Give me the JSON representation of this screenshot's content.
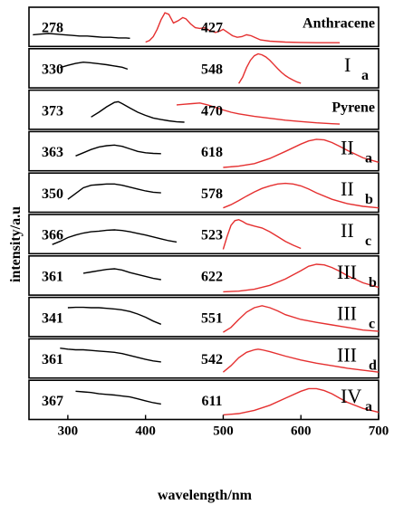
{
  "chart_data": {
    "type": "line",
    "xlabel": "wavelength/nm",
    "ylabel": "intensity/a.u",
    "xlim": [
      250,
      700
    ],
    "xticks": [
      300,
      400,
      500,
      600,
      700
    ],
    "colors": {
      "absorption": "#000000",
      "emission": "#e53030"
    },
    "panels": [
      {
        "label": "Anthracene",
        "roman": "",
        "subscript": "",
        "abs_peak": "278",
        "em_peak": "427",
        "absorption": {
          "name": "",
          "x": [
            255,
            265,
            275,
            285,
            295,
            305,
            315,
            325,
            335,
            345,
            355,
            365,
            375,
            380
          ],
          "y": [
            0.28,
            0.3,
            0.32,
            0.3,
            0.28,
            0.26,
            0.24,
            0.24,
            0.22,
            0.2,
            0.2,
            0.18,
            0.18,
            0.17
          ]
        },
        "emission": {
          "name": "",
          "x": [
            400,
            405,
            410,
            415,
            420,
            425,
            430,
            436,
            442,
            448,
            452,
            458,
            464,
            470,
            476,
            482,
            490,
            496,
            500,
            506,
            512,
            518,
            524,
            530,
            536,
            542,
            548,
            560,
            580,
            600,
            620,
            640,
            650
          ],
          "y": [
            0.05,
            0.1,
            0.22,
            0.45,
            0.75,
            0.97,
            0.92,
            0.65,
            0.72,
            0.82,
            0.78,
            0.62,
            0.5,
            0.48,
            0.5,
            0.42,
            0.35,
            0.4,
            0.45,
            0.35,
            0.25,
            0.2,
            0.22,
            0.28,
            0.25,
            0.18,
            0.12,
            0.08,
            0.05,
            0.04,
            0.03,
            0.03,
            0.03
          ]
        }
      },
      {
        "label": "",
        "roman": "I",
        "subscript": "a",
        "abs_peak": "330",
        "em_peak": "548",
        "absorption": {
          "name": "",
          "x": [
            290,
            300,
            310,
            320,
            330,
            340,
            350,
            360,
            370,
            377
          ],
          "y": [
            0.55,
            0.62,
            0.68,
            0.72,
            0.7,
            0.67,
            0.64,
            0.6,
            0.56,
            0.5
          ]
        },
        "emission": {
          "name": "",
          "x": [
            520,
            525,
            530,
            535,
            540,
            545,
            550,
            555,
            560,
            565,
            570,
            575,
            580,
            585,
            590,
            595,
            600
          ],
          "y": [
            0.05,
            0.25,
            0.55,
            0.78,
            0.92,
            0.98,
            0.95,
            0.88,
            0.78,
            0.65,
            0.52,
            0.4,
            0.3,
            0.22,
            0.16,
            0.1,
            0.06
          ]
        }
      },
      {
        "label": "Pyrene",
        "roman": "",
        "subscript": "",
        "abs_peak": "373",
        "em_peak": "470",
        "absorption": {
          "name": "",
          "x": [
            330,
            340,
            350,
            360,
            365,
            370,
            380,
            390,
            400,
            410,
            420,
            430,
            440,
            450
          ],
          "y": [
            0.3,
            0.45,
            0.62,
            0.76,
            0.78,
            0.72,
            0.58,
            0.45,
            0.35,
            0.27,
            0.22,
            0.18,
            0.15,
            0.14
          ]
        },
        "emission": {
          "name": "",
          "x": [
            440,
            450,
            460,
            470,
            480,
            490,
            500,
            510,
            520,
            540,
            560,
            580,
            600,
            620,
            640,
            650
          ],
          "y": [
            0.68,
            0.7,
            0.72,
            0.74,
            0.68,
            0.6,
            0.52,
            0.45,
            0.4,
            0.32,
            0.26,
            0.2,
            0.16,
            0.12,
            0.09,
            0.08
          ]
        }
      },
      {
        "label": "",
        "roman": "II",
        "subscript": "a",
        "abs_peak": "363",
        "em_peak": "618",
        "absorption": {
          "name": "",
          "x": [
            310,
            320,
            330,
            340,
            350,
            360,
            370,
            380,
            390,
            400,
            410,
            420
          ],
          "y": [
            0.38,
            0.48,
            0.58,
            0.66,
            0.7,
            0.72,
            0.68,
            0.6,
            0.52,
            0.48,
            0.46,
            0.45
          ]
        },
        "emission": {
          "name": "",
          "x": [
            500,
            520,
            540,
            560,
            580,
            600,
            610,
            620,
            630,
            640,
            650,
            660,
            680,
            700
          ],
          "y": [
            0.02,
            0.06,
            0.14,
            0.3,
            0.52,
            0.75,
            0.85,
            0.9,
            0.88,
            0.8,
            0.68,
            0.55,
            0.32,
            0.18
          ]
        }
      },
      {
        "label": "",
        "roman": "II",
        "subscript": "b",
        "abs_peak": "350",
        "em_peak": "578",
        "absorption": {
          "name": "",
          "x": [
            300,
            310,
            320,
            330,
            340,
            350,
            360,
            370,
            380,
            390,
            400,
            410,
            420
          ],
          "y": [
            0.32,
            0.5,
            0.68,
            0.76,
            0.78,
            0.8,
            0.8,
            0.76,
            0.7,
            0.64,
            0.58,
            0.54,
            0.52
          ]
        },
        "emission": {
          "name": "",
          "x": [
            500,
            510,
            520,
            530,
            540,
            550,
            560,
            570,
            580,
            590,
            600,
            610,
            620,
            640,
            660,
            680,
            700
          ],
          "y": [
            0.05,
            0.15,
            0.28,
            0.42,
            0.55,
            0.66,
            0.74,
            0.8,
            0.82,
            0.8,
            0.74,
            0.64,
            0.52,
            0.32,
            0.18,
            0.1,
            0.05
          ]
        }
      },
      {
        "label": "",
        "roman": "II",
        "subscript": "c",
        "abs_peak": "366",
        "em_peak": "523",
        "absorption": {
          "name": "",
          "x": [
            280,
            290,
            300,
            310,
            320,
            330,
            340,
            350,
            360,
            370,
            380,
            390,
            400,
            410,
            420,
            430,
            440
          ],
          "y": [
            0.2,
            0.3,
            0.42,
            0.5,
            0.56,
            0.6,
            0.62,
            0.65,
            0.66,
            0.64,
            0.6,
            0.55,
            0.5,
            0.44,
            0.38,
            0.32,
            0.28
          ]
        },
        "emission": {
          "name": "",
          "x": [
            500,
            505,
            510,
            515,
            520,
            525,
            530,
            540,
            550,
            560,
            570,
            580,
            590,
            600
          ],
          "y": [
            0.05,
            0.45,
            0.8,
            0.95,
            0.98,
            0.92,
            0.85,
            0.78,
            0.72,
            0.6,
            0.45,
            0.3,
            0.18,
            0.08
          ]
        }
      },
      {
        "label": "",
        "roman": "III",
        "subscript": "b",
        "abs_peak": "361",
        "em_peak": "622",
        "absorption": {
          "name": "",
          "x": [
            320,
            330,
            340,
            350,
            360,
            370,
            380,
            390,
            400,
            410,
            420
          ],
          "y": [
            0.6,
            0.64,
            0.68,
            0.72,
            0.74,
            0.7,
            0.62,
            0.56,
            0.5,
            0.44,
            0.4
          ]
        },
        "emission": {
          "name": "",
          "x": [
            500,
            520,
            540,
            560,
            580,
            600,
            610,
            620,
            630,
            640,
            650,
            660,
            680,
            700
          ],
          "y": [
            0.02,
            0.04,
            0.1,
            0.22,
            0.42,
            0.68,
            0.82,
            0.88,
            0.86,
            0.78,
            0.66,
            0.52,
            0.3,
            0.16
          ]
        }
      },
      {
        "label": "",
        "roman": "III",
        "subscript": "c",
        "abs_peak": "341",
        "em_peak": "551",
        "absorption": {
          "name": "",
          "x": [
            300,
            310,
            320,
            330,
            340,
            350,
            360,
            370,
            380,
            390,
            400,
            410,
            420
          ],
          "y": [
            0.82,
            0.83,
            0.83,
            0.82,
            0.82,
            0.8,
            0.78,
            0.75,
            0.7,
            0.62,
            0.52,
            0.4,
            0.3
          ]
        },
        "emission": {
          "name": "",
          "x": [
            500,
            510,
            520,
            530,
            540,
            550,
            560,
            570,
            580,
            600,
            620,
            640,
            660,
            680,
            700
          ],
          "y": [
            0.05,
            0.2,
            0.45,
            0.68,
            0.82,
            0.88,
            0.82,
            0.72,
            0.6,
            0.45,
            0.36,
            0.28,
            0.2,
            0.12,
            0.08
          ]
        }
      },
      {
        "label": "",
        "roman": "III",
        "subscript": "d",
        "abs_peak": "361",
        "em_peak": "542",
        "absorption": {
          "name": "",
          "x": [
            290,
            300,
            310,
            320,
            330,
            340,
            350,
            360,
            370,
            380,
            390,
            400,
            410,
            420
          ],
          "y": [
            0.85,
            0.82,
            0.8,
            0.8,
            0.78,
            0.76,
            0.74,
            0.72,
            0.68,
            0.62,
            0.56,
            0.5,
            0.45,
            0.42
          ]
        },
        "emission": {
          "name": "",
          "x": [
            500,
            510,
            520,
            530,
            540,
            545,
            550,
            560,
            580,
            600,
            620,
            640,
            660,
            680,
            700
          ],
          "y": [
            0.1,
            0.3,
            0.55,
            0.72,
            0.8,
            0.82,
            0.8,
            0.74,
            0.6,
            0.48,
            0.38,
            0.3,
            0.22,
            0.16,
            0.1
          ]
        }
      },
      {
        "label": "",
        "roman": "IV",
        "subscript": "a",
        "abs_peak": "367",
        "em_peak": "611",
        "absorption": {
          "name": "",
          "x": [
            310,
            320,
            330,
            340,
            350,
            360,
            370,
            380,
            390,
            400,
            410,
            420
          ],
          "y": [
            0.8,
            0.78,
            0.76,
            0.72,
            0.7,
            0.68,
            0.65,
            0.62,
            0.56,
            0.5,
            0.44,
            0.4
          ]
        },
        "emission": {
          "name": "",
          "x": [
            500,
            520,
            540,
            560,
            580,
            600,
            610,
            620,
            630,
            640,
            650,
            660,
            680,
            700
          ],
          "y": [
            0.06,
            0.1,
            0.2,
            0.36,
            0.58,
            0.8,
            0.88,
            0.88,
            0.82,
            0.72,
            0.58,
            0.45,
            0.26,
            0.14
          ]
        }
      }
    ]
  }
}
